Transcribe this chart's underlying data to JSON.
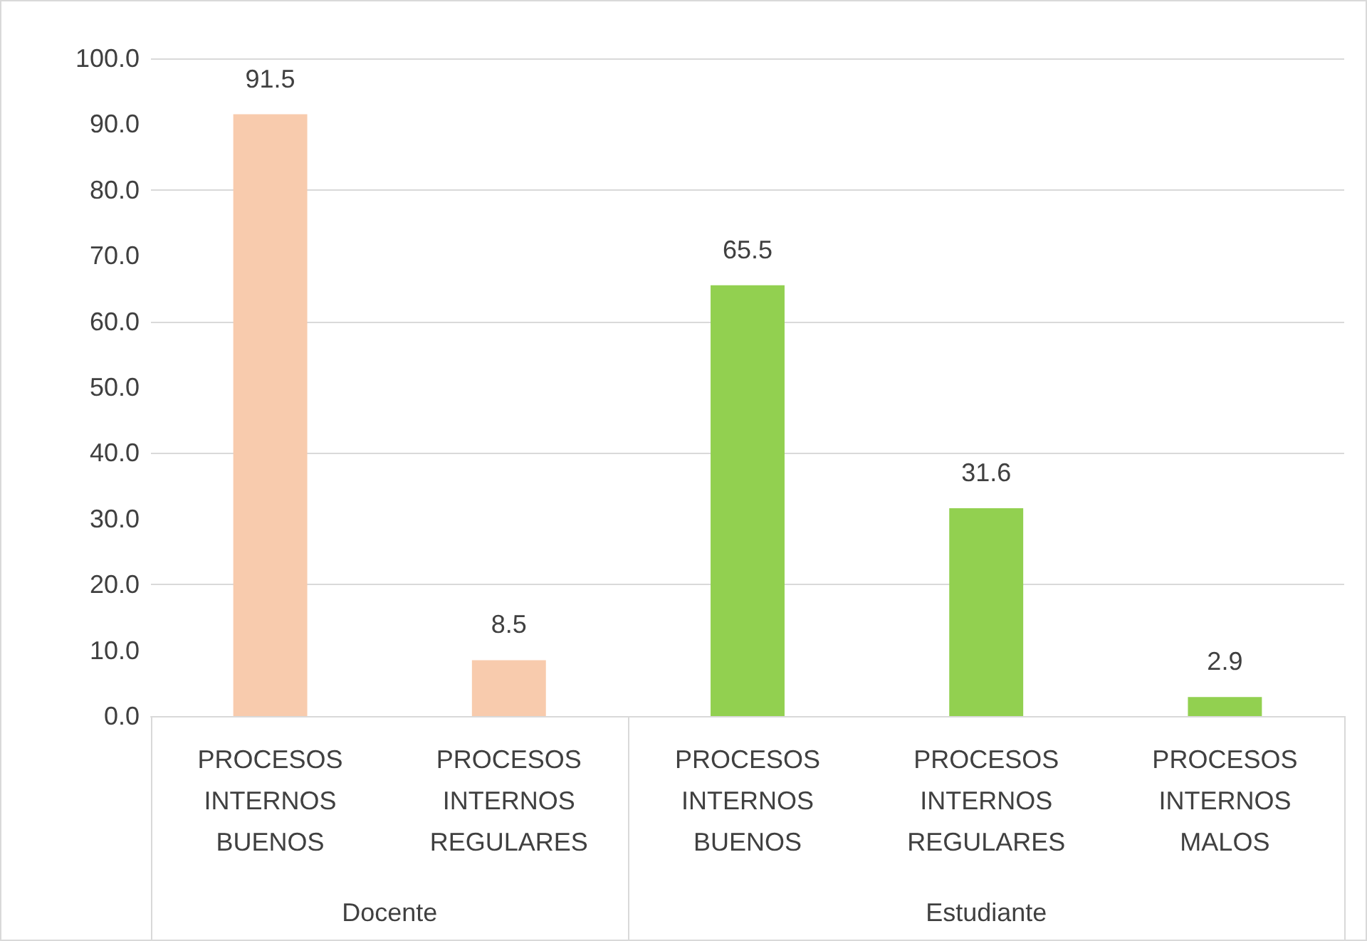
{
  "chart_data": {
    "type": "bar",
    "categories": [
      "PROCESOS INTERNOS BUENOS",
      "PROCESOS INTERNOS REGULARES",
      "PROCESOS INTERNOS BUENOS",
      "PROCESOS INTERNOS REGULARES",
      "PROCESOS INTERNOS MALOS"
    ],
    "values": [
      91.5,
      8.5,
      65.5,
      31.6,
      2.9
    ],
    "colors": [
      "#f8cbad",
      "#f8cbad",
      "#92d050",
      "#92d050",
      "#92d050"
    ],
    "annotations": [
      "Docente",
      "Estudiante"
    ],
    "ylim": [
      0,
      100
    ],
    "yticks": [
      {
        "value": 0,
        "label": "0.0"
      },
      {
        "value": 10,
        "label": "10.0"
      },
      {
        "value": 20,
        "label": "20.0"
      },
      {
        "value": 30,
        "label": "30.0"
      },
      {
        "value": 40,
        "label": "40.0"
      },
      {
        "value": 50,
        "label": "50.0"
      },
      {
        "value": 60,
        "label": "60.0"
      },
      {
        "value": 70,
        "label": "70.0"
      },
      {
        "value": 80,
        "label": "80.0"
      },
      {
        "value": 90,
        "label": "90.0"
      },
      {
        "value": 100,
        "label": "100.0"
      }
    ],
    "data_labels": true,
    "grid": true
  }
}
